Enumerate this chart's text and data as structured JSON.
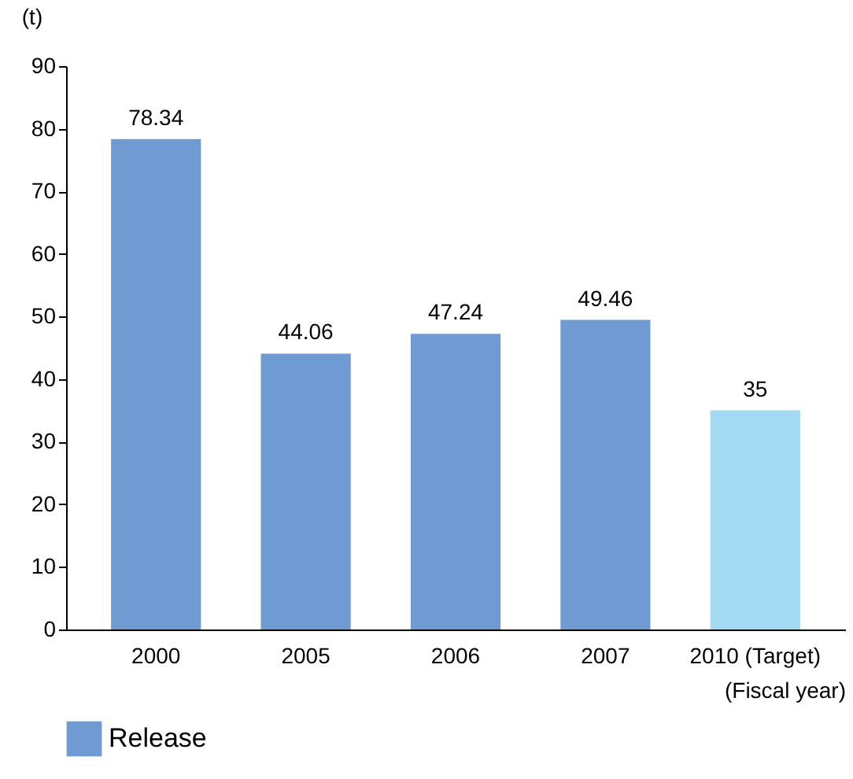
{
  "chart_data": {
    "type": "bar",
    "xlabel": "(Fiscal year)",
    "ylabel": "(t)",
    "categories": [
      "2000",
      "2005",
      "2006",
      "2007",
      "2010 (Target)"
    ],
    "series": [
      {
        "name": "Release",
        "color": "#6f9bd2",
        "values": [
          78.34,
          44.06,
          47.24,
          49.46,
          null
        ]
      },
      {
        "color": "#a3d9f3",
        "values": [
          null,
          null,
          null,
          null,
          35
        ]
      }
    ],
    "ylim": [
      0,
      90
    ],
    "yticks": [
      0,
      10,
      20,
      30,
      40,
      50,
      60,
      70,
      80,
      90
    ],
    "data_labels": true,
    "grid": false,
    "legend": "bottom"
  }
}
